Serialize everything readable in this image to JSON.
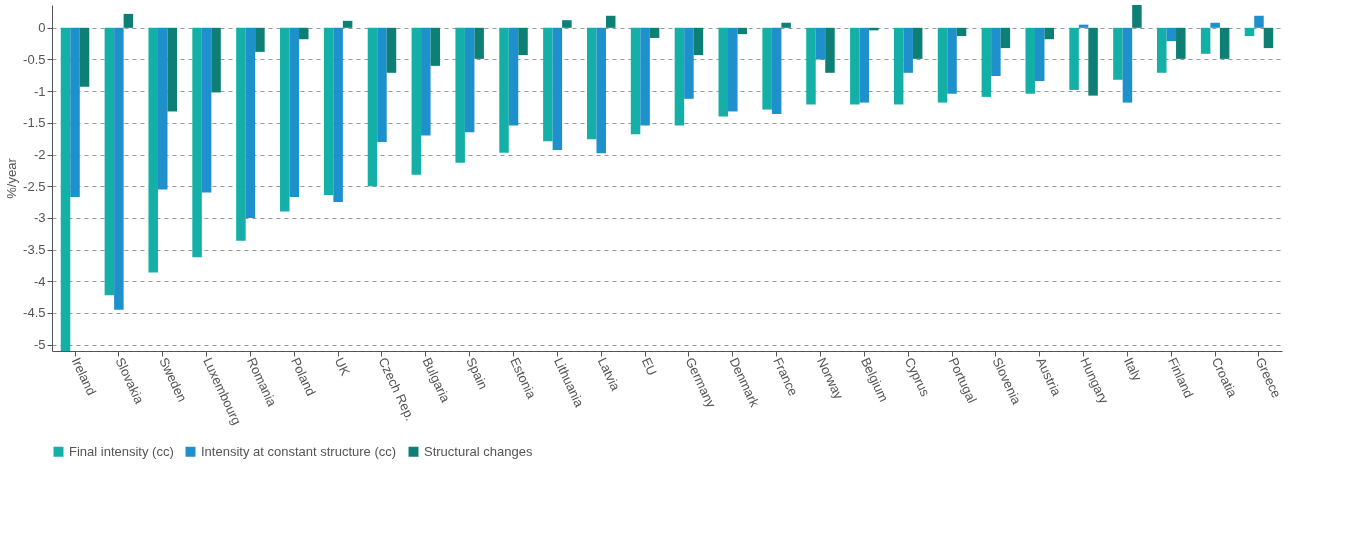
{
  "chart_data": {
    "type": "bar",
    "ylabel": "%/year",
    "categories": [
      "Ireland",
      "Slovakia",
      "Sweden",
      "Luxembourg",
      "Romania",
      "Poland",
      "UK",
      "Czech Rep.",
      "Bulgaria",
      "Spain",
      "Estonia",
      "Lithuania",
      "Latvia",
      "EU",
      "Germany",
      "Denmark",
      "France",
      "Norway",
      "Belgium",
      "Cyprus",
      "Portugal",
      "Slovenia",
      "Austria",
      "Hungary",
      "Italy",
      "Finland",
      "Croatia",
      "Greece"
    ],
    "series": [
      {
        "name": "Final intensity (cc)",
        "color": "#14b0a8",
        "values": [
          -5.1,
          -4.22,
          -3.86,
          -3.62,
          -3.36,
          -2.9,
          -2.64,
          -2.5,
          -2.32,
          -2.13,
          -1.97,
          -1.79,
          -1.76,
          -1.68,
          -1.54,
          -1.4,
          -1.29,
          -1.21,
          -1.21,
          -1.21,
          -1.18,
          -1.09,
          -1.04,
          -0.98,
          -0.82,
          -0.71,
          -0.41,
          -0.13
        ]
      },
      {
        "name": "Intensity at constant structure (cc)",
        "color": "#1e90cc",
        "values": [
          -2.67,
          -4.45,
          -2.55,
          -2.6,
          -3.0,
          -2.67,
          -2.75,
          -1.8,
          -1.7,
          -1.65,
          -1.54,
          -1.93,
          -1.98,
          -1.54,
          -1.12,
          -1.32,
          -1.36,
          -0.5,
          -1.18,
          -0.71,
          -1.04,
          -0.76,
          -0.84,
          0.05,
          -1.18,
          -0.21,
          0.08,
          0.19
        ]
      },
      {
        "name": "Structural changes",
        "color": "#0e7f74",
        "values": [
          -0.93,
          0.22,
          -1.32,
          -1.02,
          -0.38,
          -0.18,
          0.11,
          -0.71,
          -0.6,
          -0.49,
          -0.43,
          0.12,
          0.19,
          -0.16,
          -0.43,
          -0.1,
          0.08,
          -0.71,
          -0.04,
          -0.49,
          -0.13,
          -0.32,
          -0.18,
          -1.07,
          0.36,
          -0.49,
          -0.49,
          -0.32
        ]
      }
    ],
    "ylim": [
      -5.1,
      0.36
    ],
    "yticks": [
      0,
      -0.5,
      -1,
      -1.5,
      -2,
      -2.5,
      -3,
      -3.5,
      -4,
      -4.5,
      -5
    ],
    "grid": "y",
    "legend": "bottom"
  }
}
